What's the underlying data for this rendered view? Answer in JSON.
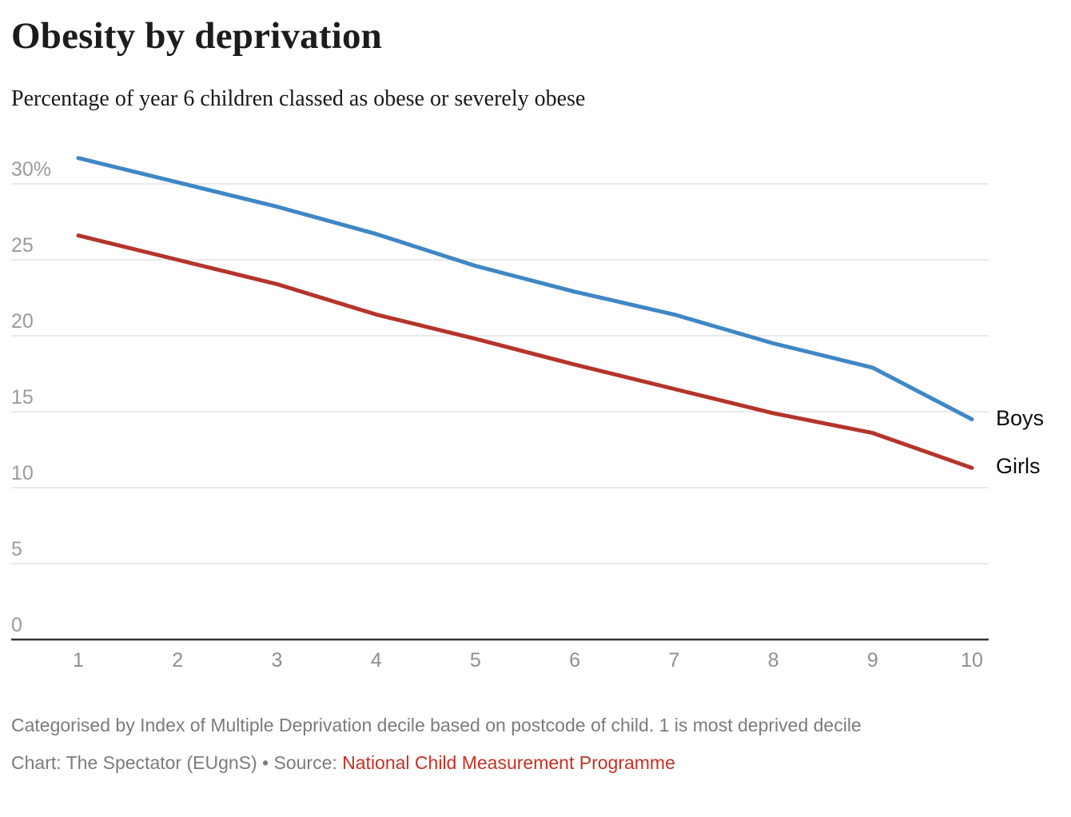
{
  "chart_data": {
    "type": "line",
    "title": "Obesity by deprivation",
    "subtitle": "Percentage of year 6 children classed as obese or severely obese",
    "x": [
      1,
      2,
      3,
      4,
      5,
      6,
      7,
      8,
      9,
      10
    ],
    "xlabel": "",
    "ylabel": "",
    "ylim": [
      0,
      32
    ],
    "yticks": [
      0,
      5,
      10,
      15,
      20,
      25,
      30
    ],
    "ytick_labels": [
      "0",
      "5",
      "10",
      "15",
      "20",
      "25",
      "30%"
    ],
    "xtick_labels": [
      "1",
      "2",
      "3",
      "4",
      "5",
      "6",
      "7",
      "8",
      "9",
      "10"
    ],
    "grid": "horizontal-only",
    "legend_position": "end-of-line-labels",
    "series": [
      {
        "name": "Boys",
        "color": "#3f87c5",
        "values": [
          31.7,
          30.1,
          28.5,
          26.7,
          24.6,
          22.9,
          21.4,
          19.5,
          17.9,
          14.5
        ]
      },
      {
        "name": "Girls",
        "color": "#b5342c",
        "values": [
          26.6,
          25.0,
          23.4,
          21.4,
          19.8,
          18.1,
          16.5,
          14.9,
          13.6,
          11.3
        ]
      }
    ]
  },
  "footer": {
    "note": "Categorised by Index of Multiple Deprivation decile based on postcode of child. 1 is most deprived decile",
    "credit_prefix": "Chart: The Spectator (EUgnS) • Source: ",
    "source_link": "National Child Measurement Programme"
  },
  "colors": {
    "gridline": "#e4e4e4",
    "axis_line": "#333333",
    "y_tick_label": "#9b9b9b",
    "x_tick_label": "#8f8f8f",
    "series_label": "#0e0e0e",
    "footnote": "#7b7b7b",
    "source_link": "#c63122",
    "boys_line": "#3f87c5",
    "girls_line": "#b5342c"
  }
}
